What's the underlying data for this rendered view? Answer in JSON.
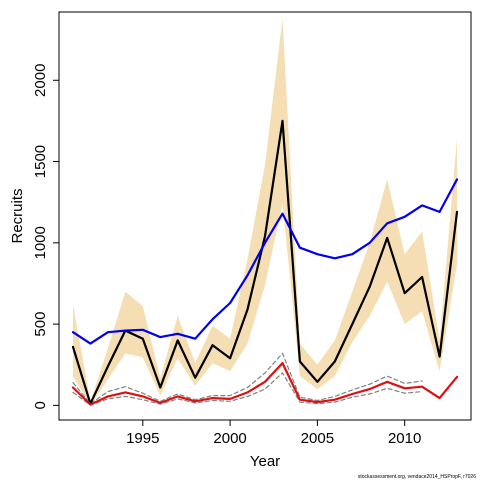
{
  "chart_data": {
    "type": "line",
    "xlabel": "Year",
    "ylabel": "Recruits",
    "xlim": [
      1990.2,
      2013.8
    ],
    "ylim": [
      -90,
      2420
    ],
    "x_ticks": [
      1995,
      2000,
      2005,
      2010
    ],
    "y_ticks": [
      0,
      500,
      1000,
      1500,
      2000
    ],
    "grid": false,
    "credit": "stockassessment.org, vendace2014_HSPropF, r7026",
    "colors": {
      "band": "#f5deb3",
      "recruits": "#000000",
      "blue_series": "#0000ee",
      "red_series": "#dd1111",
      "dashed": "#808080"
    },
    "x": [
      1991,
      1992,
      1993,
      1994,
      1995,
      1996,
      1997,
      1998,
      1999,
      2000,
      2001,
      2002,
      2003,
      2004,
      2005,
      2006,
      2007,
      2008,
      2009,
      2010,
      2011,
      2012,
      2013
    ],
    "band": {
      "upper": [
        620,
        25,
        350,
        700,
        610,
        170,
        550,
        260,
        490,
        410,
        900,
        1480,
        2380,
        380,
        250,
        400,
        700,
        1000,
        1390,
        930,
        1070,
        400,
        1640
      ],
      "lower": [
        180,
        0,
        160,
        320,
        295,
        60,
        290,
        120,
        260,
        210,
        380,
        740,
        1240,
        180,
        100,
        180,
        390,
        550,
        760,
        500,
        580,
        210,
        870
      ]
    },
    "series": [
      {
        "values": [
          360,
          10,
          240,
          460,
          410,
          110,
          400,
          170,
          370,
          290,
          590,
          1040,
          1750,
          270,
          145,
          270,
          500,
          730,
          1030,
          690,
          790,
          300,
          1190
        ]
      },
      {
        "values": [
          450,
          380,
          450,
          460,
          465,
          420,
          440,
          410,
          530,
          630,
          800,
          1000,
          1180,
          970,
          930,
          905,
          930,
          1000,
          1120,
          1160,
          1230,
          1190,
          1390
        ]
      },
      {
        "values": [
          110,
          5,
          55,
          80,
          55,
          15,
          55,
          25,
          45,
          40,
          80,
          145,
          260,
          35,
          20,
          35,
          70,
          100,
          145,
          105,
          115,
          45,
          175
        ]
      },
      {
        "values": [
          140,
          10,
          85,
          115,
          75,
          25,
          70,
          35,
          60,
          60,
          110,
          200,
          320,
          50,
          30,
          55,
          95,
          130,
          180,
          135,
          150,
          null,
          null
        ]
      },
      {
        "values": [
          80,
          2,
          40,
          55,
          35,
          8,
          40,
          15,
          30,
          25,
          55,
          100,
          200,
          20,
          10,
          20,
          50,
          70,
          105,
          75,
          85,
          null,
          null
        ]
      }
    ]
  }
}
